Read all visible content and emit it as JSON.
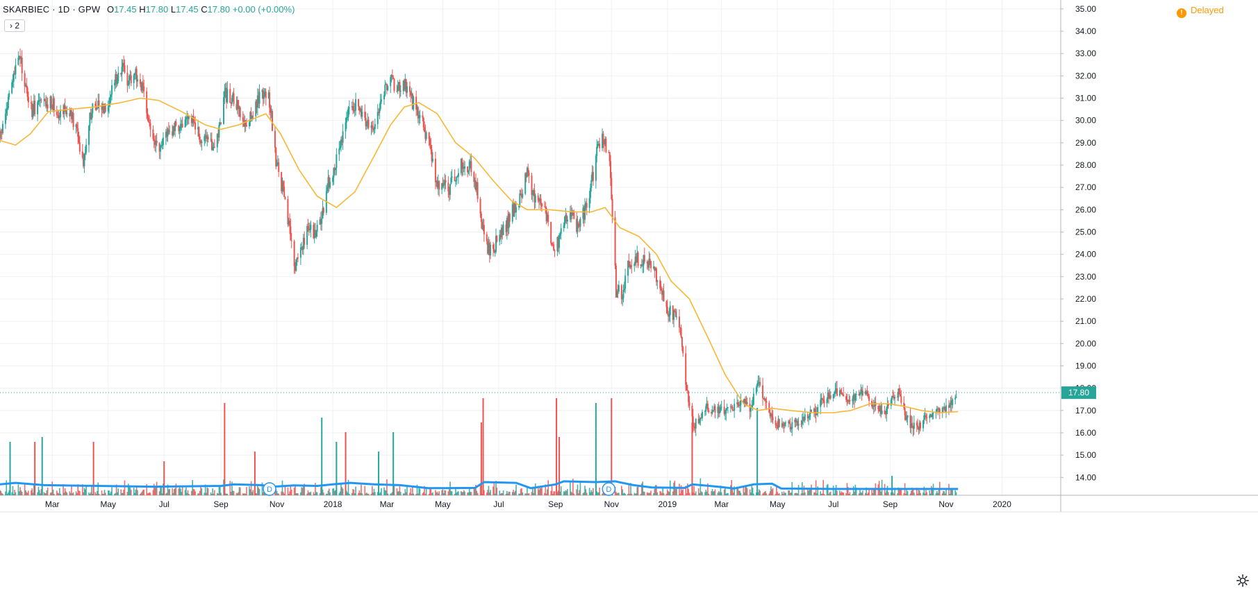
{
  "legend": {
    "symbol": "SKARBIEC · 1D · GPW",
    "open_label": "O",
    "open": "17.45",
    "high_label": "H",
    "high": "17.80",
    "low_label": "L",
    "low": "17.45",
    "close_label": "C",
    "close": "17.80",
    "change": "+0.00 (+0.00%)"
  },
  "collapse": {
    "label": "› 2"
  },
  "status": {
    "delayed_icon": "!",
    "delayed_label": "Delayed"
  },
  "icons": {
    "settings": "gear-icon"
  },
  "colors": {
    "up": "#26a69a",
    "down": "#ef5350",
    "ma": "#f7b733",
    "volume_ma": "#2196f3",
    "price_line": "#26a69a",
    "delayed": "#ff9800"
  },
  "chart_data": {
    "type": "candlestick",
    "y_axis": {
      "side": "right",
      "ticks": [
        "14.00",
        "15.00",
        "16.00",
        "17.00",
        "18.00",
        "19.00",
        "20.00",
        "21.00",
        "22.00",
        "23.00",
        "24.00",
        "25.00",
        "26.00",
        "27.00",
        "28.00",
        "29.00",
        "30.00",
        "31.00",
        "32.00",
        "33.00",
        "34.00",
        "35.00"
      ],
      "range": [
        13.2,
        35.4
      ]
    },
    "x_axis": {
      "ticks": [
        {
          "label": "Mar",
          "date": "2017-03-01"
        },
        {
          "label": "May",
          "date": "2017-05-01"
        },
        {
          "label": "Jul",
          "date": "2017-07-01"
        },
        {
          "label": "Sep",
          "date": "2017-09-01"
        },
        {
          "label": "Nov",
          "date": "2017-11-01"
        },
        {
          "label": "2018",
          "date": "2018-01-01"
        },
        {
          "label": "Mar",
          "date": "2018-03-01"
        },
        {
          "label": "May",
          "date": "2018-05-01"
        },
        {
          "label": "Jul",
          "date": "2018-07-01"
        },
        {
          "label": "Sep",
          "date": "2018-09-01"
        },
        {
          "label": "Nov",
          "date": "2018-11-01"
        },
        {
          "label": "2019",
          "date": "2019-01-01"
        },
        {
          "label": "Mar",
          "date": "2019-03-01"
        },
        {
          "label": "May",
          "date": "2019-05-01"
        },
        {
          "label": "Jul",
          "date": "2019-07-01"
        },
        {
          "label": "Sep",
          "date": "2019-09-01"
        },
        {
          "label": "Nov",
          "date": "2019-11-01"
        },
        {
          "label": "2020",
          "date": "2020-01-01"
        }
      ],
      "range": [
        "2017-01-03",
        "2020-03-05"
      ]
    },
    "grid": true,
    "last_price": 17.8,
    "price_path": [
      [
        "2017-01-03",
        29.2
      ],
      [
        "2017-01-10",
        30.5
      ],
      [
        "2017-01-17",
        31.8
      ],
      [
        "2017-01-24",
        32.9
      ],
      [
        "2017-01-31",
        31.5
      ],
      [
        "2017-02-07",
        30.4
      ],
      [
        "2017-02-14",
        30.9
      ],
      [
        "2017-02-21",
        30.6
      ],
      [
        "2017-02-28",
        30.9
      ],
      [
        "2017-03-07",
        30.4
      ],
      [
        "2017-03-14",
        30.6
      ],
      [
        "2017-03-21",
        30.2
      ],
      [
        "2017-03-28",
        29.5
      ],
      [
        "2017-04-04",
        28.2
      ],
      [
        "2017-04-11",
        30.2
      ],
      [
        "2017-04-18",
        30.8
      ],
      [
        "2017-04-25",
        30.6
      ],
      [
        "2017-05-02",
        30.9
      ],
      [
        "2017-05-09",
        31.9
      ],
      [
        "2017-05-16",
        32.4
      ],
      [
        "2017-05-23",
        31.8
      ],
      [
        "2017-05-30",
        32.2
      ],
      [
        "2017-06-06",
        31.6
      ],
      [
        "2017-06-13",
        30.2
      ],
      [
        "2017-06-20",
        29.0
      ],
      [
        "2017-06-27",
        28.6
      ],
      [
        "2017-07-04",
        29.6
      ],
      [
        "2017-07-11",
        29.5
      ],
      [
        "2017-07-18",
        29.9
      ],
      [
        "2017-07-25",
        29.8
      ],
      [
        "2017-08-01",
        30.2
      ],
      [
        "2017-08-08",
        29.3
      ],
      [
        "2017-08-15",
        29.0
      ],
      [
        "2017-08-22",
        28.8
      ],
      [
        "2017-08-29",
        29.4
      ],
      [
        "2017-09-05",
        31.2
      ],
      [
        "2017-09-12",
        31.0
      ],
      [
        "2017-09-19",
        30.6
      ],
      [
        "2017-09-26",
        29.8
      ],
      [
        "2017-10-03",
        30.2
      ],
      [
        "2017-10-10",
        30.8
      ],
      [
        "2017-10-17",
        31.3
      ],
      [
        "2017-10-24",
        30.9
      ],
      [
        "2017-10-31",
        28.2
      ],
      [
        "2017-11-07",
        27.0
      ],
      [
        "2017-11-14",
        25.2
      ],
      [
        "2017-11-21",
        23.4
      ],
      [
        "2017-11-28",
        24.4
      ],
      [
        "2017-12-05",
        25.2
      ],
      [
        "2017-12-12",
        25.0
      ],
      [
        "2017-12-19",
        25.4
      ],
      [
        "2017-12-26",
        27.0
      ],
      [
        "2018-01-02",
        27.9
      ],
      [
        "2018-01-09",
        29.0
      ],
      [
        "2018-01-16",
        30.1
      ],
      [
        "2018-01-23",
        30.8
      ],
      [
        "2018-01-30",
        30.4
      ],
      [
        "2018-02-06",
        30.0
      ],
      [
        "2018-02-13",
        29.6
      ],
      [
        "2018-02-20",
        30.6
      ],
      [
        "2018-02-27",
        31.4
      ],
      [
        "2018-03-06",
        31.7
      ],
      [
        "2018-03-13",
        31.4
      ],
      [
        "2018-03-20",
        31.6
      ],
      [
        "2018-03-27",
        31.0
      ],
      [
        "2018-04-03",
        30.4
      ],
      [
        "2018-04-10",
        29.8
      ],
      [
        "2018-04-17",
        28.8
      ],
      [
        "2018-04-24",
        27.2
      ],
      [
        "2018-05-01",
        27.1
      ],
      [
        "2018-05-08",
        26.9
      ],
      [
        "2018-05-15",
        27.6
      ],
      [
        "2018-05-22",
        28.0
      ],
      [
        "2018-05-29",
        28.0
      ],
      [
        "2018-06-05",
        27.4
      ],
      [
        "2018-06-12",
        25.6
      ],
      [
        "2018-06-19",
        24.2
      ],
      [
        "2018-06-26",
        24.4
      ],
      [
        "2018-07-03",
        24.8
      ],
      [
        "2018-07-10",
        25.4
      ],
      [
        "2018-07-17",
        26.0
      ],
      [
        "2018-07-24",
        26.4
      ],
      [
        "2018-07-31",
        27.8
      ],
      [
        "2018-08-07",
        26.6
      ],
      [
        "2018-08-14",
        26.6
      ],
      [
        "2018-08-21",
        26.0
      ],
      [
        "2018-08-28",
        24.3
      ],
      [
        "2018-09-04",
        24.6
      ],
      [
        "2018-09-11",
        25.4
      ],
      [
        "2018-09-18",
        25.8
      ],
      [
        "2018-09-25",
        25.2
      ],
      [
        "2018-10-02",
        25.9
      ],
      [
        "2018-10-09",
        26.9
      ],
      [
        "2018-10-16",
        28.6
      ],
      [
        "2018-10-23",
        29.2
      ],
      [
        "2018-10-30",
        28.1
      ],
      [
        "2018-11-06",
        22.4
      ],
      [
        "2018-11-13",
        22.3
      ],
      [
        "2018-11-20",
        23.6
      ],
      [
        "2018-11-27",
        23.9
      ],
      [
        "2018-12-04",
        23.7
      ],
      [
        "2018-12-11",
        23.6
      ],
      [
        "2018-12-18",
        23.2
      ],
      [
        "2018-12-25",
        22.6
      ],
      [
        "2019-01-01",
        21.4
      ],
      [
        "2019-01-08",
        21.3
      ],
      [
        "2019-01-15",
        20.5
      ],
      [
        "2019-01-22",
        18.0
      ],
      [
        "2019-01-29",
        16.3
      ],
      [
        "2019-02-05",
        16.6
      ],
      [
        "2019-02-12",
        17.2
      ],
      [
        "2019-02-19",
        17.0
      ],
      [
        "2019-02-26",
        17.0
      ],
      [
        "2019-03-05",
        16.9
      ],
      [
        "2019-03-12",
        17.1
      ],
      [
        "2019-03-19",
        17.2
      ],
      [
        "2019-03-26",
        17.4
      ],
      [
        "2019-04-02",
        17.0
      ],
      [
        "2019-04-09",
        18.4
      ],
      [
        "2019-04-16",
        17.5
      ],
      [
        "2019-04-23",
        16.9
      ],
      [
        "2019-04-30",
        16.4
      ],
      [
        "2019-05-07",
        16.5
      ],
      [
        "2019-05-14",
        16.3
      ],
      [
        "2019-05-21",
        16.5
      ],
      [
        "2019-05-28",
        16.6
      ],
      [
        "2019-06-04",
        16.9
      ],
      [
        "2019-06-11",
        16.9
      ],
      [
        "2019-06-18",
        17.4
      ],
      [
        "2019-06-25",
        17.6
      ],
      [
        "2019-07-02",
        17.9
      ],
      [
        "2019-07-09",
        17.8
      ],
      [
        "2019-07-16",
        17.5
      ],
      [
        "2019-07-23",
        17.6
      ],
      [
        "2019-07-30",
        17.8
      ],
      [
        "2019-08-06",
        17.7
      ],
      [
        "2019-08-13",
        17.3
      ],
      [
        "2019-08-20",
        17.0
      ],
      [
        "2019-08-27",
        17.0
      ],
      [
        "2019-09-03",
        17.6
      ],
      [
        "2019-09-10",
        17.8
      ],
      [
        "2019-09-17",
        16.8
      ],
      [
        "2019-09-24",
        16.3
      ],
      [
        "2019-10-01",
        16.2
      ],
      [
        "2019-10-08",
        16.6
      ],
      [
        "2019-10-15",
        16.9
      ],
      [
        "2019-10-22",
        17.0
      ],
      [
        "2019-10-29",
        17.1
      ],
      [
        "2019-11-05",
        17.2
      ],
      [
        "2019-11-12",
        17.8
      ]
    ],
    "moving_average": [
      [
        "2017-01-03",
        29.1
      ],
      [
        "2017-01-20",
        28.9
      ],
      [
        "2017-02-05",
        29.4
      ],
      [
        "2017-02-25",
        30.4
      ],
      [
        "2017-03-20",
        30.5
      ],
      [
        "2017-04-15",
        30.6
      ],
      [
        "2017-05-15",
        30.8
      ],
      [
        "2017-06-05",
        31.0
      ],
      [
        "2017-06-25",
        30.9
      ],
      [
        "2017-07-20",
        30.4
      ],
      [
        "2017-08-15",
        29.8
      ],
      [
        "2017-09-01",
        29.6
      ],
      [
        "2017-09-20",
        29.8
      ],
      [
        "2017-10-20",
        30.3
      ],
      [
        "2017-11-05",
        29.4
      ],
      [
        "2017-11-25",
        27.8
      ],
      [
        "2017-12-15",
        26.6
      ],
      [
        "2018-01-05",
        26.1
      ],
      [
        "2018-01-25",
        26.8
      ],
      [
        "2018-02-15",
        28.4
      ],
      [
        "2018-03-05",
        29.8
      ],
      [
        "2018-03-20",
        30.6
      ],
      [
        "2018-04-05",
        30.8
      ],
      [
        "2018-04-25",
        30.3
      ],
      [
        "2018-05-15",
        29.0
      ],
      [
        "2018-06-05",
        28.3
      ],
      [
        "2018-06-25",
        27.3
      ],
      [
        "2018-07-15",
        26.4
      ],
      [
        "2018-08-01",
        26.0
      ],
      [
        "2018-08-25",
        26.0
      ],
      [
        "2018-09-20",
        25.9
      ],
      [
        "2018-10-10",
        25.9
      ],
      [
        "2018-10-25",
        26.1
      ],
      [
        "2018-11-10",
        25.2
      ],
      [
        "2018-12-01",
        24.8
      ],
      [
        "2018-12-20",
        24.0
      ],
      [
        "2019-01-05",
        22.8
      ],
      [
        "2019-01-25",
        22.0
      ],
      [
        "2019-02-15",
        20.2
      ],
      [
        "2019-03-05",
        18.6
      ],
      [
        "2019-03-25",
        17.3
      ],
      [
        "2019-04-10",
        17.0
      ],
      [
        "2019-04-25",
        17.1
      ],
      [
        "2019-05-15",
        17.0
      ],
      [
        "2019-06-10",
        16.9
      ],
      [
        "2019-07-01",
        16.9
      ],
      [
        "2019-07-20",
        17.0
      ],
      [
        "2019-08-10",
        17.3
      ],
      [
        "2019-08-30",
        17.3
      ],
      [
        "2019-09-15",
        17.2
      ],
      [
        "2019-10-05",
        17.0
      ],
      [
        "2019-10-25",
        16.9
      ],
      [
        "2019-11-14",
        16.95
      ]
    ],
    "volume_spikes": [
      [
        "2017-01-14",
        0.55,
        "up"
      ],
      [
        "2017-02-10",
        0.55,
        "down"
      ],
      [
        "2017-02-18",
        0.6,
        "up"
      ],
      [
        "2017-04-15",
        0.55,
        "down"
      ],
      [
        "2017-07-01",
        0.35,
        "down"
      ],
      [
        "2017-09-05",
        0.95,
        "down"
      ],
      [
        "2017-10-08",
        0.45,
        "down"
      ],
      [
        "2017-12-20",
        0.8,
        "up"
      ],
      [
        "2018-01-05",
        0.55,
        "up"
      ],
      [
        "2018-01-15",
        0.65,
        "down"
      ],
      [
        "2018-02-20",
        0.45,
        "up"
      ],
      [
        "2018-03-08",
        0.65,
        "up"
      ],
      [
        "2018-06-12",
        0.75,
        "down"
      ],
      [
        "2018-06-14",
        1.0,
        "down"
      ],
      [
        "2018-09-02",
        1.0,
        "down"
      ],
      [
        "2018-09-05",
        0.6,
        "down"
      ],
      [
        "2018-10-15",
        0.95,
        "up"
      ],
      [
        "2018-11-01",
        1.0,
        "down"
      ],
      [
        "2019-01-28",
        0.75,
        "down"
      ],
      [
        "2019-04-09",
        0.9,
        "up"
      ],
      [
        "2019-09-03",
        0.2,
        "up"
      ]
    ],
    "volume_ma": [
      [
        "2017-01-03",
        0.35
      ],
      [
        "2017-01-20",
        0.45
      ],
      [
        "2017-02-20",
        0.3
      ],
      [
        "2017-04-20",
        0.25
      ],
      [
        "2017-06-20",
        0.2
      ],
      [
        "2017-09-01",
        0.25
      ],
      [
        "2017-09-15",
        0.35
      ],
      [
        "2017-10-15",
        0.3
      ],
      [
        "2017-10-28",
        0.2
      ],
      [
        "2017-11-20",
        0.28
      ],
      [
        "2017-12-15",
        0.25
      ],
      [
        "2018-01-01",
        0.35
      ],
      [
        "2018-01-20",
        0.45
      ],
      [
        "2018-02-15",
        0.35
      ],
      [
        "2018-03-15",
        0.3
      ],
      [
        "2018-04-15",
        0.1
      ],
      [
        "2018-06-05",
        0.12
      ],
      [
        "2018-06-15",
        0.5
      ],
      [
        "2018-07-20",
        0.45
      ],
      [
        "2018-08-05",
        0.1
      ],
      [
        "2018-09-01",
        0.35
      ],
      [
        "2018-09-10",
        0.55
      ],
      [
        "2018-10-15",
        0.5
      ],
      [
        "2018-11-05",
        0.55
      ],
      [
        "2018-11-25",
        0.3
      ],
      [
        "2018-12-15",
        0.15
      ],
      [
        "2019-01-20",
        0.12
      ],
      [
        "2019-01-28",
        0.35
      ],
      [
        "2019-02-25",
        0.2
      ],
      [
        "2019-03-15",
        0.08
      ],
      [
        "2019-04-05",
        0.35
      ],
      [
        "2019-04-25",
        0.4
      ],
      [
        "2019-05-05",
        0.08
      ],
      [
        "2019-07-01",
        0.05
      ],
      [
        "2019-11-14",
        0.05
      ]
    ],
    "dividend_markers": [
      {
        "date": "2017-10-24",
        "label": "D"
      },
      {
        "date": "2018-10-29",
        "label": "D"
      }
    ]
  }
}
